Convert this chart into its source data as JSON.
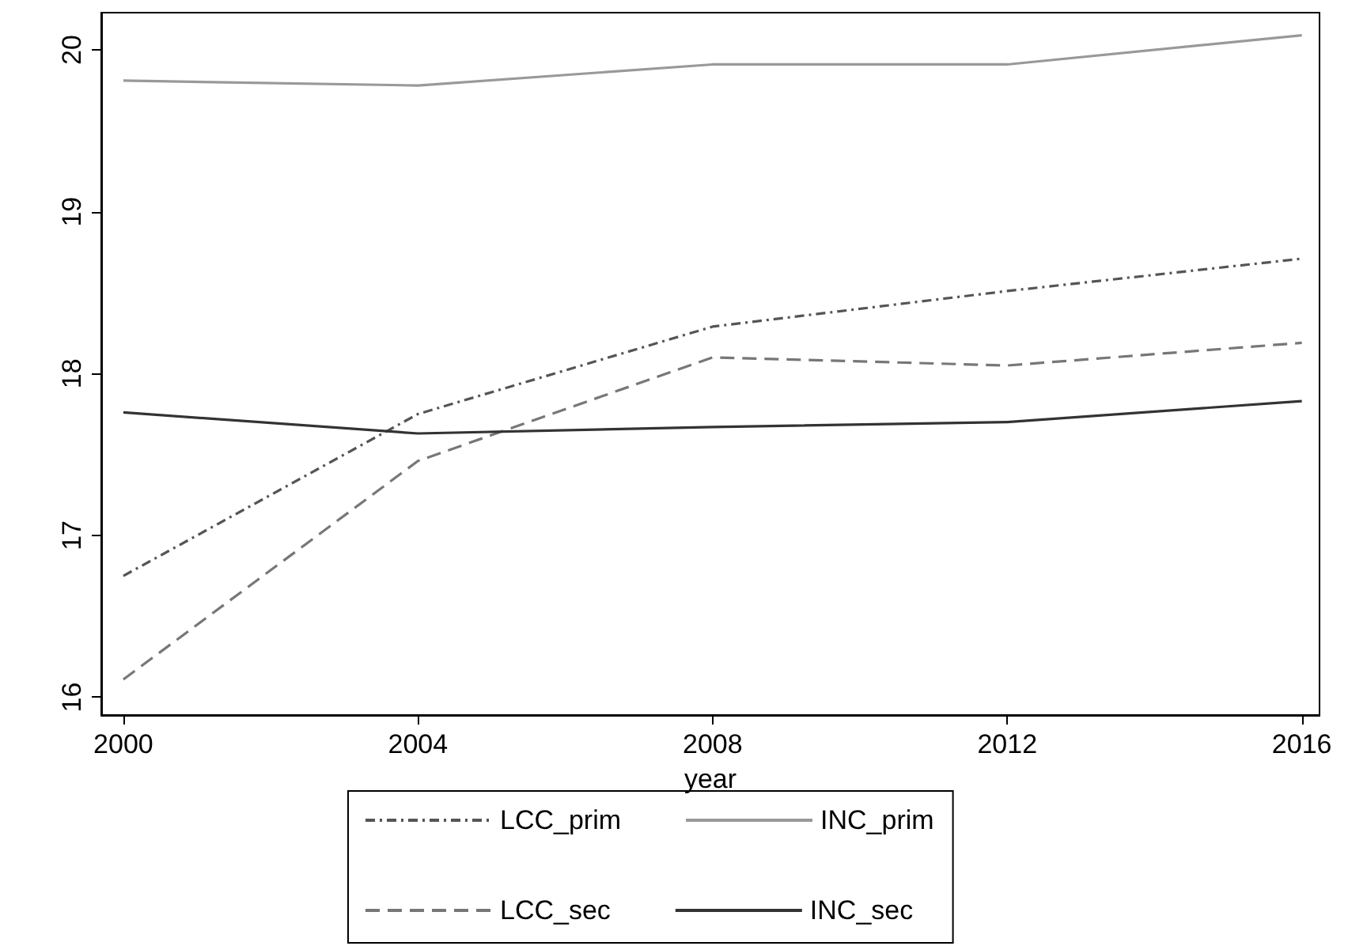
{
  "chart_data": {
    "type": "line",
    "xlabel": "year",
    "x": [
      2000,
      2004,
      2008,
      2012,
      2016
    ],
    "series": [
      {
        "name": "LCC_prim",
        "color": "#555555",
        "line_style": "dashdot",
        "values": [
          16.75,
          17.75,
          18.29,
          18.51,
          18.71
        ]
      },
      {
        "name": "LCC_sec",
        "color": "#777777",
        "line_style": "dashed",
        "values": [
          16.11,
          17.46,
          18.1,
          18.05,
          18.19
        ]
      },
      {
        "name": "INC_prim",
        "color": "#999999",
        "line_style": "solid",
        "values": [
          19.81,
          19.78,
          19.91,
          19.91,
          20.09
        ]
      },
      {
        "name": "INC_sec",
        "color": "#333333",
        "line_style": "solid",
        "values": [
          17.76,
          17.63,
          17.67,
          17.7,
          17.83
        ]
      }
    ],
    "xlim": [
      1999.7,
      2016.24
    ],
    "xticks": [
      2000,
      2004,
      2008,
      2012,
      2016
    ],
    "ylim": [
      15.89,
      20.23
    ],
    "yticks": [
      16,
      17,
      18,
      19,
      20
    ],
    "grid": false,
    "legend": "bottom",
    "marker": "none"
  }
}
